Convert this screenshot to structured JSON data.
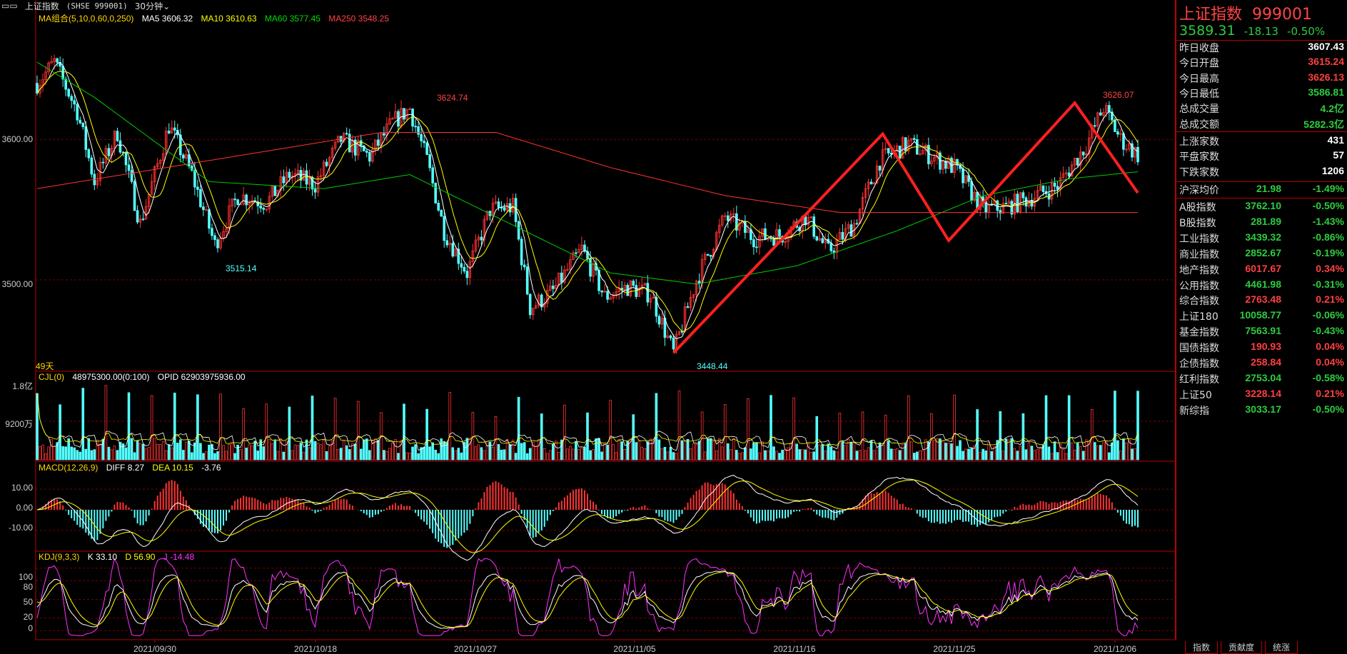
{
  "header": {
    "index_name": "上证指数",
    "symbol": "(SHSE 999001)",
    "period": "30分钟"
  },
  "ma_legend": {
    "label": "MA组合(5,10,0,60,0,250)",
    "ma5": "MA5 3606.32",
    "ma10": "MA10 3610.63",
    "ma60": "MA60 3577.45",
    "ma250": "MA250 3548.25"
  },
  "vol_legend": {
    "label": "CJL(0)",
    "value": "48975300.00(0:100)",
    "opid": "OPID 62903975936.00"
  },
  "macd_legend": {
    "label": "MACD(12,26,9)",
    "diff": "DIFF 8.27",
    "dea": "DEA 10.15",
    "macd": "-3.76"
  },
  "kdj_legend": {
    "label": "KDJ(9,3,3)",
    "k": "K 33.10",
    "d": "D 56.90",
    "j": "J -14.48"
  },
  "days_label": "49天",
  "annotations": {
    "high1": "3624.74",
    "low1": "3515.14",
    "low2": "3448.44",
    "high2": "3626.07"
  },
  "price_ticks": [
    "3600.00",
    "3500.00"
  ],
  "volume_ticks": [
    "1.8亿",
    "9200万"
  ],
  "macd_ticks": [
    "10.00",
    "0.00",
    "-10.00"
  ],
  "kdj_ticks": [
    "100",
    "80",
    "50",
    "20",
    "0"
  ],
  "x_dates": [
    "2021/09/30",
    "2021/10/18",
    "2021/10/27",
    "2021/11/05",
    "2021/11/16",
    "2021/11/25",
    "2021/12/06"
  ],
  "colors": {
    "up": "#ff3333",
    "down": "#54ffff",
    "ma5": "#ffffff",
    "ma10": "#ffff00",
    "ma60": "#00cc00",
    "ma250": "#ff3333",
    "pattern": "#ff2020",
    "kdj_j": "#ff33ff"
  },
  "chart_data": {
    "type": "candlestick",
    "ylim": [
      3440,
      3680
    ],
    "price_path": [
      [
        0,
        3640
      ],
      [
        6,
        3655
      ],
      [
        14,
        3620
      ],
      [
        20,
        3570
      ],
      [
        28,
        3605
      ],
      [
        36,
        3540
      ],
      [
        46,
        3610
      ],
      [
        54,
        3575
      ],
      [
        62,
        3525
      ],
      [
        70,
        3560
      ],
      [
        80,
        3555
      ],
      [
        88,
        3575
      ],
      [
        97,
        3568
      ],
      [
        106,
        3600
      ],
      [
        116,
        3588
      ],
      [
        124,
        3612
      ],
      [
        130,
        3622
      ],
      [
        136,
        3585
      ],
      [
        142,
        3535
      ],
      [
        150,
        3505
      ],
      [
        158,
        3550
      ],
      [
        166,
        3552
      ],
      [
        172,
        3480
      ],
      [
        180,
        3492
      ],
      [
        190,
        3522
      ],
      [
        198,
        3488
      ],
      [
        206,
        3495
      ],
      [
        214,
        3490
      ],
      [
        222,
        3448
      ],
      [
        230,
        3500
      ],
      [
        240,
        3545
      ],
      [
        250,
        3530
      ],
      [
        260,
        3532
      ],
      [
        268,
        3545
      ],
      [
        276,
        3520
      ],
      [
        285,
        3540
      ],
      [
        294,
        3585
      ],
      [
        304,
        3597
      ],
      [
        312,
        3588
      ],
      [
        320,
        3580
      ],
      [
        330,
        3550
      ],
      [
        338,
        3552
      ],
      [
        346,
        3558
      ],
      [
        356,
        3567
      ],
      [
        366,
        3596
      ],
      [
        372,
        3623
      ],
      [
        378,
        3600
      ],
      [
        384,
        3589
      ]
    ],
    "ma60_path": [
      [
        0,
        3655
      ],
      [
        20,
        3630
      ],
      [
        60,
        3570
      ],
      [
        100,
        3565
      ],
      [
        130,
        3575
      ],
      [
        160,
        3545
      ],
      [
        200,
        3505
      ],
      [
        230,
        3497
      ],
      [
        265,
        3510
      ],
      [
        300,
        3535
      ],
      [
        330,
        3560
      ],
      [
        360,
        3572
      ],
      [
        384,
        3577
      ]
    ],
    "ma250_path": [
      [
        0,
        3565
      ],
      [
        60,
        3585
      ],
      [
        120,
        3605
      ],
      [
        160,
        3605
      ],
      [
        200,
        3580
      ],
      [
        240,
        3560
      ],
      [
        280,
        3548
      ],
      [
        330,
        3548
      ],
      [
        384,
        3548
      ]
    ],
    "pattern_points": [
      [
        222,
        3448
      ],
      [
        295,
        3604
      ],
      [
        318,
        3528
      ],
      [
        362,
        3626
      ],
      [
        384,
        3562
      ]
    ],
    "bars": 385,
    "volume_max": 180000000,
    "macd_ylim": [
      -18,
      18
    ],
    "kdj_ylim": [
      -10,
      110
    ],
    "kdj_last": {
      "K": 33.1,
      "D": 56.9,
      "J": -14.48
    },
    "macd_last": {
      "DIFF": 8.27,
      "DEA": 10.15,
      "MACD": -3.76
    },
    "ma_last": {
      "MA5": 3606.32,
      "MA10": 3610.63,
      "MA60": 3577.45,
      "MA250": 3548.25
    },
    "peak_labels": [
      {
        "value": 3624.74
      },
      {
        "value": 3515.14
      },
      {
        "value": 3448.44
      },
      {
        "value": 3626.07
      }
    ]
  },
  "info": {
    "title": "上证指数",
    "code": "999001",
    "price": "3589.31",
    "change": "-18.13",
    "change_pct": "-0.50%",
    "stats": [
      {
        "k": "昨日收盘",
        "v": "3607.43",
        "c": "wh"
      },
      {
        "k": "今日开盘",
        "v": "3615.24",
        "c": "up"
      },
      {
        "k": "今日最高",
        "v": "3626.13",
        "c": "up"
      },
      {
        "k": "今日最低",
        "v": "3586.81",
        "c": "dn"
      },
      {
        "k": "总成交量",
        "v": "4.2亿",
        "c": "dn"
      },
      {
        "k": "总成交额",
        "v": "5282.3亿",
        "c": "dn"
      }
    ],
    "breadth": [
      {
        "k": "上涨家数",
        "v": "431",
        "c": "wh"
      },
      {
        "k": "平盘家数",
        "v": "57",
        "c": "wh"
      },
      {
        "k": "下跌家数",
        "v": "1206",
        "c": "wh"
      }
    ],
    "avg": {
      "k": "沪深均价",
      "v": "21.98",
      "p": "-1.49%",
      "c": "dn"
    },
    "indices": [
      {
        "k": "A股指数",
        "v": "3762.10",
        "p": "-0.50%",
        "c": "dn"
      },
      {
        "k": "B股指数",
        "v": "281.89",
        "p": "-1.43%",
        "c": "dn"
      },
      {
        "k": "工业指数",
        "v": "3439.32",
        "p": "-0.86%",
        "c": "dn"
      },
      {
        "k": "商业指数",
        "v": "2852.67",
        "p": "-0.19%",
        "c": "dn"
      },
      {
        "k": "地产指数",
        "v": "6017.67",
        "p": "0.34%",
        "c": "up"
      },
      {
        "k": "公用指数",
        "v": "4461.98",
        "p": "-0.31%",
        "c": "dn"
      },
      {
        "k": "综合指数",
        "v": "2763.48",
        "p": "0.21%",
        "c": "up"
      },
      {
        "k": "上证180",
        "v": "10058.77",
        "p": "-0.06%",
        "c": "dn"
      },
      {
        "k": "基金指数",
        "v": "7563.91",
        "p": "-0.43%",
        "c": "dn"
      },
      {
        "k": "国债指数",
        "v": "190.93",
        "p": "0.04%",
        "c": "up"
      },
      {
        "k": "企债指数",
        "v": "258.84",
        "p": "0.04%",
        "c": "up"
      },
      {
        "k": "红利指数",
        "v": "2753.04",
        "p": "-0.58%",
        "c": "dn"
      },
      {
        "k": "上证50",
        "v": "3228.14",
        "p": "0.21%",
        "c": "up"
      },
      {
        "k": "新综指",
        "v": "3033.17",
        "p": "-0.50%",
        "c": "dn"
      }
    ]
  },
  "tabs": [
    "指数",
    "贡献度",
    "统涨"
  ]
}
